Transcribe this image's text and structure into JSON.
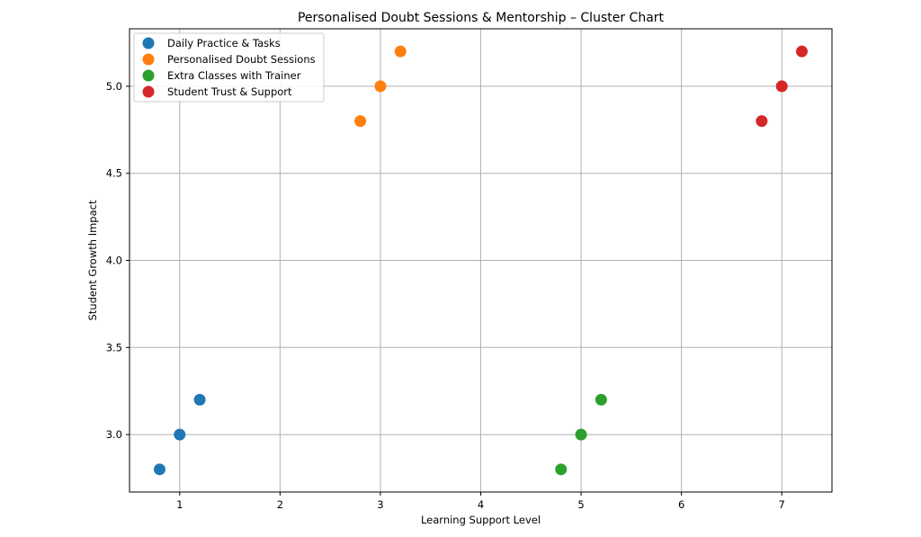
{
  "chart_data": {
    "type": "scatter",
    "title": "Personalised Doubt Sessions & Mentorship – Cluster Chart",
    "xlabel": "Learning Support Level",
    "ylabel": "Student Growth Impact",
    "xlim": [
      0.5,
      7.5
    ],
    "ylim": [
      2.67,
      5.33
    ],
    "xticks": [
      1,
      2,
      3,
      4,
      5,
      6,
      7
    ],
    "xtick_labels": [
      "1",
      "2",
      "3",
      "4",
      "5",
      "6",
      "7"
    ],
    "yticks": [
      3.0,
      3.5,
      4.0,
      4.5,
      5.0
    ],
    "ytick_labels": [
      "3.0",
      "3.5",
      "4.0",
      "4.5",
      "5.0"
    ],
    "grid": true,
    "legend_position": "top-left",
    "series": [
      {
        "name": "Daily Practice & Tasks",
        "color": "#1f77b4",
        "points": [
          {
            "x": 0.8,
            "y": 2.8
          },
          {
            "x": 1.0,
            "y": 3.0
          },
          {
            "x": 1.2,
            "y": 3.2
          }
        ]
      },
      {
        "name": "Personalised Doubt Sessions",
        "color": "#ff7f0e",
        "points": [
          {
            "x": 2.8,
            "y": 4.8
          },
          {
            "x": 3.0,
            "y": 5.0
          },
          {
            "x": 3.2,
            "y": 5.2
          }
        ]
      },
      {
        "name": "Extra Classes with Trainer",
        "color": "#2ca02c",
        "points": [
          {
            "x": 4.8,
            "y": 2.8
          },
          {
            "x": 5.0,
            "y": 3.0
          },
          {
            "x": 5.2,
            "y": 3.2
          }
        ]
      },
      {
        "name": "Student Trust & Support",
        "color": "#d62728",
        "points": [
          {
            "x": 6.8,
            "y": 4.8
          },
          {
            "x": 7.0,
            "y": 5.0
          },
          {
            "x": 7.2,
            "y": 5.2
          }
        ]
      }
    ]
  }
}
